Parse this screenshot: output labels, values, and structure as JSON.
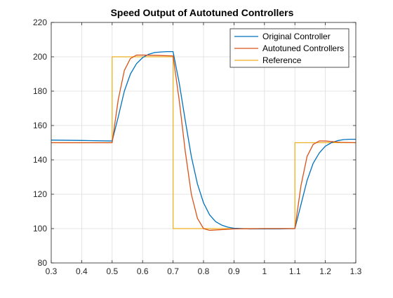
{
  "chart_data": {
    "type": "line",
    "title": "Speed Output of Autotuned Controllers",
    "xlabel": "",
    "ylabel": "",
    "xlim": [
      0.3,
      1.3
    ],
    "ylim": [
      80,
      220
    ],
    "xticks": [
      0.3,
      0.4,
      0.5,
      0.6,
      0.7,
      0.8,
      0.9,
      1.0,
      1.1,
      1.2,
      1.3
    ],
    "xtick_labels": [
      "0.3",
      "0.4",
      "0.5",
      "0.6",
      "0.7",
      "0.8",
      "0.9",
      "1",
      "1.1",
      "1.2",
      "1.3"
    ],
    "yticks": [
      80,
      100,
      120,
      140,
      160,
      180,
      200,
      220
    ],
    "ytick_labels": [
      "80",
      "100",
      "120",
      "140",
      "160",
      "180",
      "200",
      "220"
    ],
    "grid": true,
    "legend_position": "top-right",
    "series": [
      {
        "name": "Original Controller",
        "color": "#0072BD",
        "x": [
          0.3,
          0.4,
          0.5,
          0.52,
          0.54,
          0.56,
          0.58,
          0.6,
          0.62,
          0.64,
          0.66,
          0.68,
          0.7,
          0.72,
          0.74,
          0.76,
          0.78,
          0.8,
          0.82,
          0.84,
          0.86,
          0.88,
          0.9,
          0.95,
          1.0,
          1.05,
          1.1,
          1.12,
          1.14,
          1.16,
          1.18,
          1.2,
          1.22,
          1.24,
          1.26,
          1.28,
          1.3
        ],
        "y": [
          151.5,
          151.3,
          151.0,
          165.0,
          180.0,
          190.0,
          196.0,
          199.5,
          201.5,
          202.5,
          202.8,
          203.0,
          203.0,
          185.0,
          163.0,
          142.0,
          126.0,
          115.0,
          108.0,
          104.0,
          102.0,
          100.8,
          100.2,
          99.8,
          99.8,
          99.8,
          100.0,
          114.0,
          128.0,
          138.0,
          144.0,
          148.0,
          150.0,
          151.2,
          151.8,
          152.0,
          152.0
        ]
      },
      {
        "name": "Autotuned Controllers",
        "color": "#D95319",
        "x": [
          0.3,
          0.4,
          0.5,
          0.52,
          0.54,
          0.56,
          0.58,
          0.6,
          0.65,
          0.7,
          0.72,
          0.74,
          0.76,
          0.78,
          0.8,
          0.82,
          0.84,
          0.9,
          1.0,
          1.05,
          1.1,
          1.12,
          1.14,
          1.16,
          1.18,
          1.2,
          1.25,
          1.3
        ],
        "y": [
          150.0,
          150.0,
          150.0,
          175.0,
          192.0,
          199.0,
          201.0,
          201.0,
          200.8,
          200.5,
          175.0,
          145.0,
          120.0,
          106.0,
          100.0,
          99.0,
          99.2,
          99.8,
          100.0,
          100.0,
          100.0,
          125.0,
          142.0,
          149.0,
          151.0,
          151.0,
          150.2,
          150.0
        ]
      },
      {
        "name": "Reference",
        "color": "#EDB120",
        "x": [
          0.3,
          0.5,
          0.5,
          0.7,
          0.7,
          1.1,
          1.1,
          1.3
        ],
        "y": [
          150,
          150,
          200,
          200,
          100,
          100,
          150,
          150
        ]
      }
    ]
  }
}
